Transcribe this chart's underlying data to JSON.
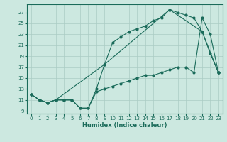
{
  "xlabel": "Humidex (Indice chaleur)",
  "bg_color": "#cce8e0",
  "line_color": "#1a6b5a",
  "grid_color": "#aaccc4",
  "xlim": [
    -0.5,
    23.5
  ],
  "ylim": [
    8.5,
    28.5
  ],
  "yticks": [
    9,
    11,
    13,
    15,
    17,
    19,
    21,
    23,
    25,
    27
  ],
  "xticks": [
    0,
    1,
    2,
    3,
    4,
    5,
    6,
    7,
    8,
    9,
    10,
    11,
    12,
    13,
    14,
    15,
    16,
    17,
    18,
    19,
    20,
    21,
    22,
    23
  ],
  "series1_x": [
    0,
    1,
    2,
    3,
    4,
    5,
    6,
    7,
    8,
    9,
    10,
    11,
    12,
    13,
    14,
    15,
    16,
    17,
    18,
    19,
    20,
    21,
    22,
    23
  ],
  "series1_y": [
    12,
    11,
    10.5,
    11,
    11,
    11,
    9.5,
    9.5,
    13,
    17.5,
    21.5,
    22.5,
    23.5,
    24,
    24.5,
    25.5,
    26,
    27.5,
    27,
    26.5,
    26,
    23.5,
    19.5,
    16
  ],
  "series2_x": [
    0,
    1,
    2,
    3,
    4,
    5,
    6,
    7,
    8,
    9,
    10,
    11,
    12,
    13,
    14,
    15,
    16,
    17,
    18,
    19,
    20,
    21,
    22,
    23
  ],
  "series2_y": [
    12,
    11,
    10.5,
    11,
    11,
    11,
    9.5,
    9.5,
    12.5,
    13,
    13.5,
    14,
    14.5,
    15,
    15.5,
    15.5,
    16,
    16.5,
    17,
    17,
    16,
    26,
    23,
    16
  ],
  "series3_x": [
    0,
    1,
    2,
    3,
    9,
    17,
    21,
    23
  ],
  "series3_y": [
    12,
    11,
    10.5,
    11,
    17.5,
    27.5,
    23.5,
    16
  ]
}
